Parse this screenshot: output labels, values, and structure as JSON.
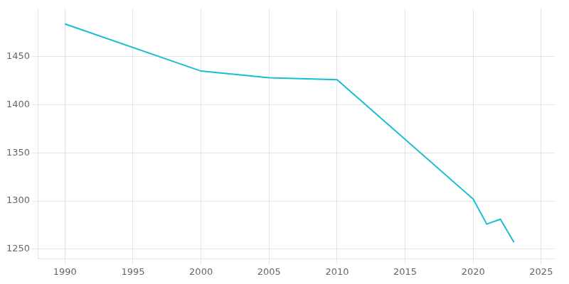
{
  "chart_data": {
    "type": "line",
    "x": [
      1990,
      2000,
      2005,
      2010,
      2020,
      2021,
      2022,
      2023
    ],
    "values": [
      1484,
      1435,
      1428,
      1426,
      1302,
      1276,
      1281,
      1257
    ],
    "color": "#17becf",
    "xlim": [
      1988,
      2026
    ],
    "ylim": [
      1240,
      1500
    ],
    "xticks": [
      1990,
      1995,
      2000,
      2005,
      2010,
      2015,
      2020,
      2025
    ],
    "yticks": [
      1250,
      1300,
      1350,
      1400,
      1450
    ],
    "grid": true
  }
}
